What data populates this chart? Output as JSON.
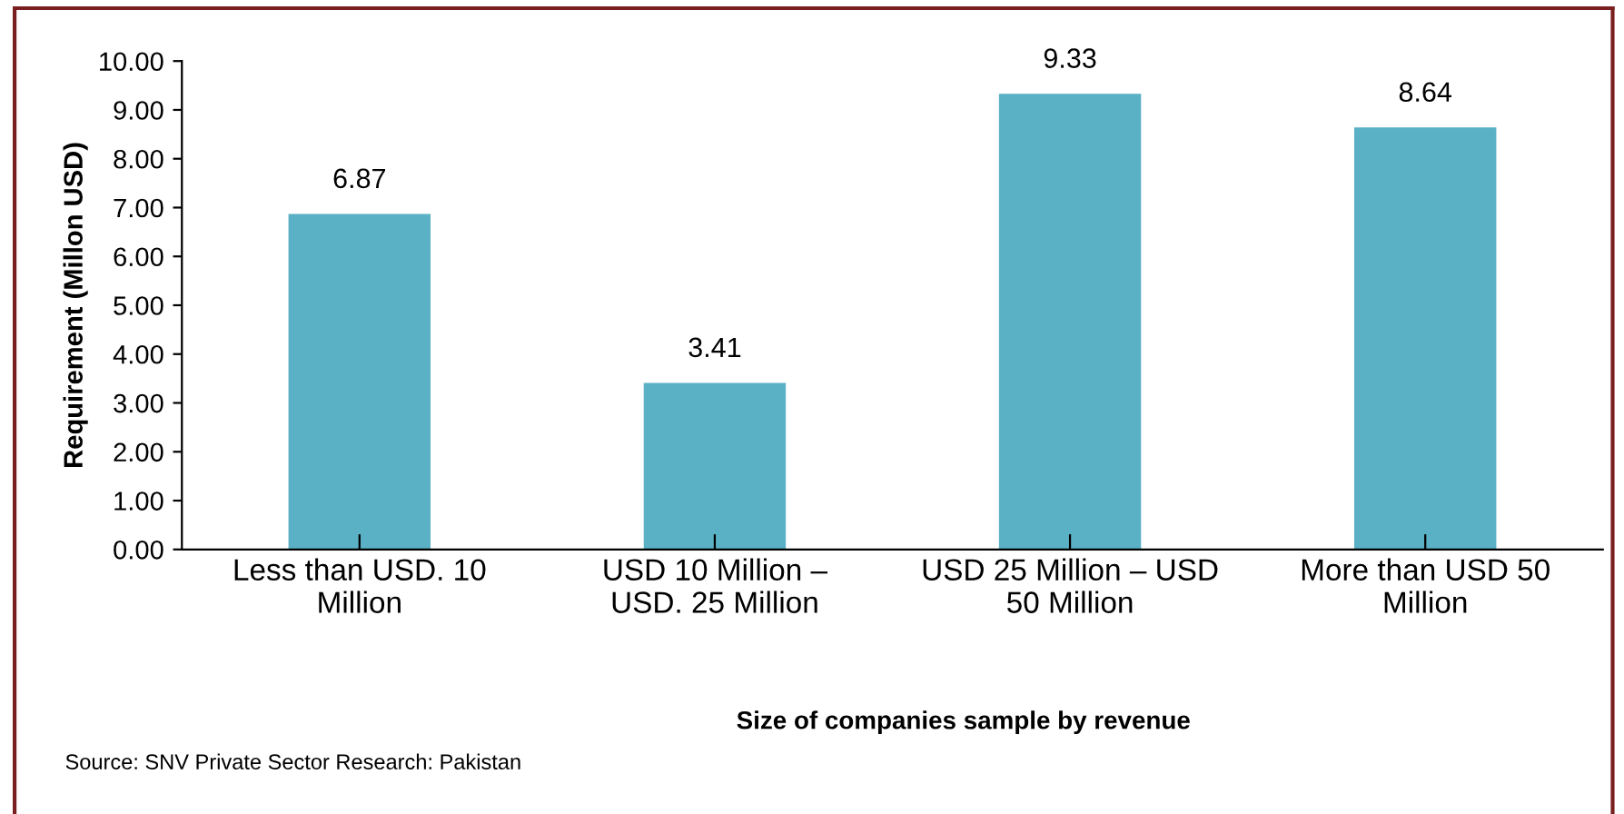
{
  "chart_data": {
    "type": "bar",
    "xlabel": "Size of companies sample by revenue",
    "ylabel": "Requirement (Millon USD)",
    "categories": [
      "Less than USD. 10\nMillion",
      "USD 10 Million –\nUSD. 25 Million",
      "USD 25 Million – USD\n50 Million",
      "More than USD 50\nMillion"
    ],
    "values": [
      6.87,
      3.41,
      9.33,
      8.64
    ],
    "color": "#5ab1c6",
    "data_labels": true,
    "grid": false,
    "legend": false,
    "ylim": [
      0,
      10
    ],
    "yticks": [
      {
        "value": 0,
        "label": "0.00"
      },
      {
        "value": 1,
        "label": "1.00"
      },
      {
        "value": 2,
        "label": "2.00"
      },
      {
        "value": 3,
        "label": "3.00"
      },
      {
        "value": 4,
        "label": "4.00"
      },
      {
        "value": 5,
        "label": "5.00"
      },
      {
        "value": 6,
        "label": "6.00"
      },
      {
        "value": 7,
        "label": "7.00"
      },
      {
        "value": 8,
        "label": "8.00"
      },
      {
        "value": 9,
        "label": "9.00"
      },
      {
        "value": 10,
        "label": "10.00"
      }
    ],
    "annotations": [
      "Source: SNV Private Sector Research: Pakistan"
    ]
  }
}
